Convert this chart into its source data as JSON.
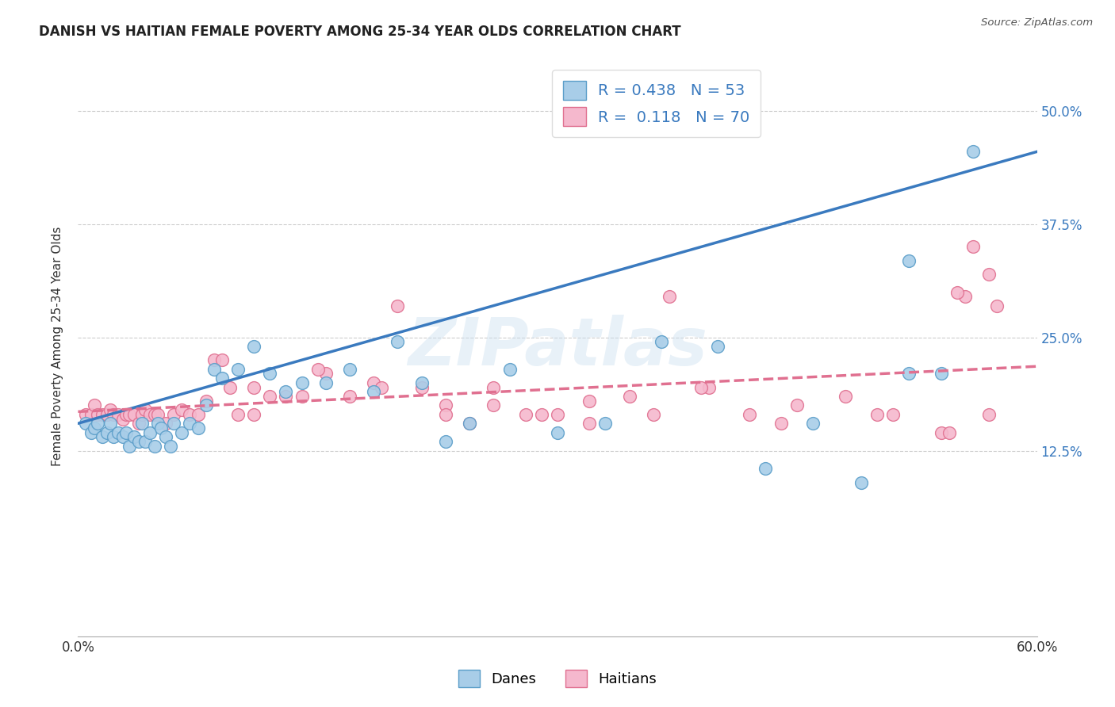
{
  "title": "DANISH VS HAITIAN FEMALE POVERTY AMONG 25-34 YEAR OLDS CORRELATION CHART",
  "source": "Source: ZipAtlas.com",
  "ylabel": "Female Poverty Among 25-34 Year Olds",
  "yticks": [
    "12.5%",
    "25.0%",
    "37.5%",
    "50.0%"
  ],
  "ytick_vals": [
    0.125,
    0.25,
    0.375,
    0.5
  ],
  "xlim": [
    0.0,
    0.6
  ],
  "ylim": [
    -0.08,
    0.56
  ],
  "danes_color": "#a8cde8",
  "danes_edge_color": "#5b9ec9",
  "haitians_color": "#f5b8cd",
  "haitians_edge_color": "#e07090",
  "danes_line_color": "#3a7abf",
  "haitians_line_color": "#e07090",
  "danes_R": 0.438,
  "danes_N": 53,
  "haitians_R": 0.118,
  "haitians_N": 70,
  "watermark": "ZIPatlas",
  "danes_line_x0": 0.0,
  "danes_line_y0": 0.155,
  "danes_line_x1": 0.6,
  "danes_line_y1": 0.455,
  "haitians_line_x0": 0.0,
  "haitians_line_y0": 0.168,
  "haitians_line_x1": 0.6,
  "haitians_line_y1": 0.218,
  "danes_x": [
    0.005,
    0.008,
    0.01,
    0.012,
    0.015,
    0.018,
    0.02,
    0.022,
    0.025,
    0.028,
    0.03,
    0.032,
    0.035,
    0.038,
    0.04,
    0.042,
    0.045,
    0.048,
    0.05,
    0.052,
    0.055,
    0.058,
    0.06,
    0.065,
    0.07,
    0.075,
    0.08,
    0.085,
    0.09,
    0.1,
    0.11,
    0.12,
    0.13,
    0.14,
    0.155,
    0.17,
    0.185,
    0.2,
    0.215,
    0.23,
    0.245,
    0.27,
    0.3,
    0.33,
    0.365,
    0.4,
    0.43,
    0.46,
    0.49,
    0.52,
    0.52,
    0.54,
    0.56
  ],
  "danes_y": [
    0.155,
    0.145,
    0.15,
    0.155,
    0.14,
    0.145,
    0.155,
    0.14,
    0.145,
    0.14,
    0.145,
    0.13,
    0.14,
    0.135,
    0.155,
    0.135,
    0.145,
    0.13,
    0.155,
    0.15,
    0.14,
    0.13,
    0.155,
    0.145,
    0.155,
    0.15,
    0.175,
    0.215,
    0.205,
    0.215,
    0.24,
    0.21,
    0.19,
    0.2,
    0.2,
    0.215,
    0.19,
    0.245,
    0.2,
    0.135,
    0.155,
    0.215,
    0.145,
    0.155,
    0.245,
    0.24,
    0.105,
    0.155,
    0.09,
    0.21,
    0.335,
    0.21,
    0.455
  ],
  "haitians_x": [
    0.005,
    0.008,
    0.01,
    0.012,
    0.015,
    0.018,
    0.02,
    0.022,
    0.025,
    0.028,
    0.03,
    0.032,
    0.035,
    0.038,
    0.04,
    0.042,
    0.045,
    0.048,
    0.05,
    0.055,
    0.06,
    0.065,
    0.07,
    0.075,
    0.08,
    0.085,
    0.09,
    0.095,
    0.1,
    0.11,
    0.12,
    0.13,
    0.14,
    0.155,
    0.17,
    0.185,
    0.2,
    0.215,
    0.23,
    0.245,
    0.26,
    0.28,
    0.3,
    0.32,
    0.345,
    0.37,
    0.395,
    0.42,
    0.45,
    0.48,
    0.51,
    0.54,
    0.555,
    0.55,
    0.56,
    0.57,
    0.575,
    0.57,
    0.545,
    0.5,
    0.44,
    0.39,
    0.36,
    0.32,
    0.29,
    0.26,
    0.23,
    0.19,
    0.15,
    0.11
  ],
  "haitians_y": [
    0.165,
    0.165,
    0.175,
    0.165,
    0.165,
    0.165,
    0.17,
    0.165,
    0.165,
    0.16,
    0.165,
    0.165,
    0.165,
    0.155,
    0.165,
    0.17,
    0.165,
    0.165,
    0.165,
    0.155,
    0.165,
    0.17,
    0.165,
    0.165,
    0.18,
    0.225,
    0.225,
    0.195,
    0.165,
    0.165,
    0.185,
    0.185,
    0.185,
    0.21,
    0.185,
    0.2,
    0.285,
    0.195,
    0.175,
    0.155,
    0.195,
    0.165,
    0.165,
    0.18,
    0.185,
    0.295,
    0.195,
    0.165,
    0.175,
    0.185,
    0.165,
    0.145,
    0.295,
    0.3,
    0.35,
    0.32,
    0.285,
    0.165,
    0.145,
    0.165,
    0.155,
    0.195,
    0.165,
    0.155,
    0.165,
    0.175,
    0.165,
    0.195,
    0.215,
    0.195
  ],
  "background_color": "#ffffff",
  "grid_color": "#cccccc"
}
